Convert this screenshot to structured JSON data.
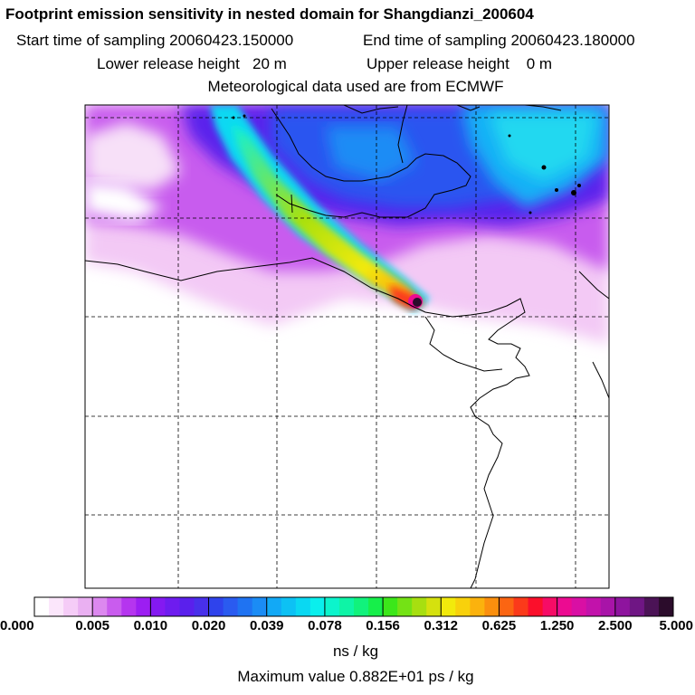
{
  "header": {
    "title": "Footprint emission sensitivity in nested domain for Shangdianzi_200604",
    "start_label": "Start time of sampling 20060423.150000",
    "end_label": "End time of sampling 20060423.180000",
    "lower_label": "Lower release height   20 m",
    "upper_label": "Upper release height    0 m",
    "met_label": "Meteorological data used are from ECMWF"
  },
  "colorbar": {
    "ticks": [
      "0.000",
      "0.005",
      "0.010",
      "0.020",
      "0.039",
      "0.078",
      "0.156",
      "0.312",
      "0.625",
      "1.250",
      "2.500",
      "5.000"
    ],
    "colors": [
      "#ffffff",
      "#fbe6fb",
      "#f5ccf7",
      "#eab0f2",
      "#dc88ef",
      "#c95cee",
      "#b535ef",
      "#9c1ef2",
      "#8419f1",
      "#6e1cef",
      "#5a20ec",
      "#4830ea",
      "#2f43ec",
      "#2a5bf0",
      "#1f73f2",
      "#1b8cf5",
      "#12a9f6",
      "#0dc1f4",
      "#0ad8f2",
      "#0aefed",
      "#0cf4cc",
      "#0ef4a6",
      "#11f27c",
      "#16ef4a",
      "#3ce71a",
      "#74e215",
      "#a7df10",
      "#d5e10e",
      "#f2ea0c",
      "#f8d10c",
      "#fbb20d",
      "#fb8f0e",
      "#fb6512",
      "#fb3a1a",
      "#fb0f2b",
      "#f60c66",
      "#ec0b91",
      "#d90fa4",
      "#c212ab",
      "#a814a8",
      "#8e149e",
      "#6f1684",
      "#4b1356",
      "#2b0c2b"
    ],
    "unit": "ns / kg"
  },
  "max_value_label": "Maximum value  0.882E+01 ps / kg",
  "map": {
    "hotspot_color": "#2b0c2b"
  }
}
